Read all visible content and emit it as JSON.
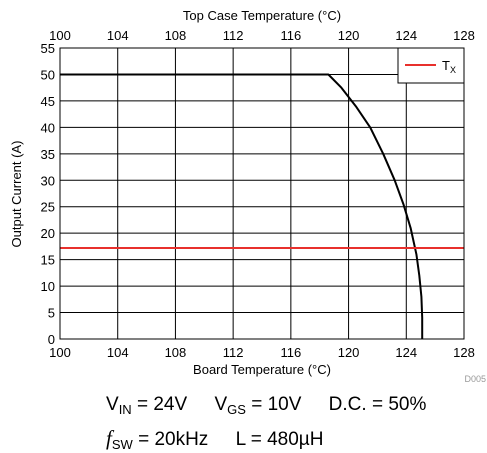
{
  "chart_data": {
    "type": "line",
    "title": "",
    "xlabel": "Board Temperature (°C)",
    "x2label": "Top Case Temperature (°C)",
    "ylabel": "Output Current (A)",
    "xlim": [
      100,
      128
    ],
    "ylim": [
      0,
      55
    ],
    "xticks": [
      100,
      104,
      108,
      112,
      116,
      120,
      124,
      128
    ],
    "x2ticks": [
      100,
      104,
      108,
      112,
      116,
      120,
      124,
      128
    ],
    "yticks": [
      0,
      5,
      10,
      15,
      20,
      25,
      30,
      35,
      40,
      45,
      50,
      55
    ],
    "grid": true,
    "legend": {
      "position": "top-right",
      "entry_main": "T",
      "entry_sub": "X"
    },
    "series": [
      {
        "color": "#000000",
        "x": [
          100,
          118.6,
          119.5,
          120.5,
          121.5,
          122.4,
          123.2,
          123.8,
          124.3,
          124.7,
          124.9,
          125.05,
          125.1,
          125.1
        ],
        "y": [
          50,
          50,
          47.5,
          44,
          40,
          35,
          30,
          25.5,
          21,
          16,
          12,
          8,
          4,
          0
        ]
      },
      {
        "name": "Tx",
        "color": "#e8302c",
        "x": [
          100,
          128
        ],
        "y": [
          17.2,
          17.2
        ]
      }
    ],
    "figure_code": "D005"
  },
  "conditions": {
    "vin_label": "V",
    "vin_sub": "IN",
    "vin_value": " = 24V",
    "vgs_label": "V",
    "vgs_sub": "GS",
    "vgs_value": " = 10V",
    "dc_text": "D.C. = 50%",
    "fsw_label": "f",
    "fsw_sub": "SW",
    "fsw_value": " = 20kHz",
    "inductance_text": "L = 480µH"
  }
}
